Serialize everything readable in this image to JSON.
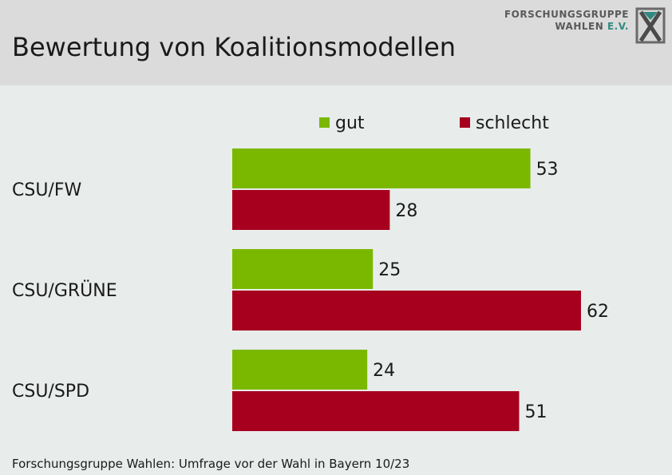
{
  "title": "Bewertung von Koalitionsmodellen",
  "logo": {
    "line1": "FORSCHUNGSGRUPPE",
    "line2a": "WAHLEN ",
    "line2b": "E.V."
  },
  "source": "Forschungsgruppe Wahlen: Umfrage vor der Wahl in Bayern 10/23",
  "colors": {
    "gut": "#7ab800",
    "schlecht": "#a6001e",
    "text": "#1a1a1a"
  },
  "chart_data": {
    "type": "bar",
    "orientation": "horizontal",
    "categories": [
      "CSU/FW",
      "CSU/GRÜNE",
      "CSU/SPD"
    ],
    "series": [
      {
        "name": "gut",
        "values": [
          53,
          25,
          24
        ]
      },
      {
        "name": "schlecht",
        "values": [
          28,
          62,
          51
        ]
      }
    ],
    "xlim": [
      0,
      62
    ],
    "grid": false,
    "legend_position": "top"
  }
}
